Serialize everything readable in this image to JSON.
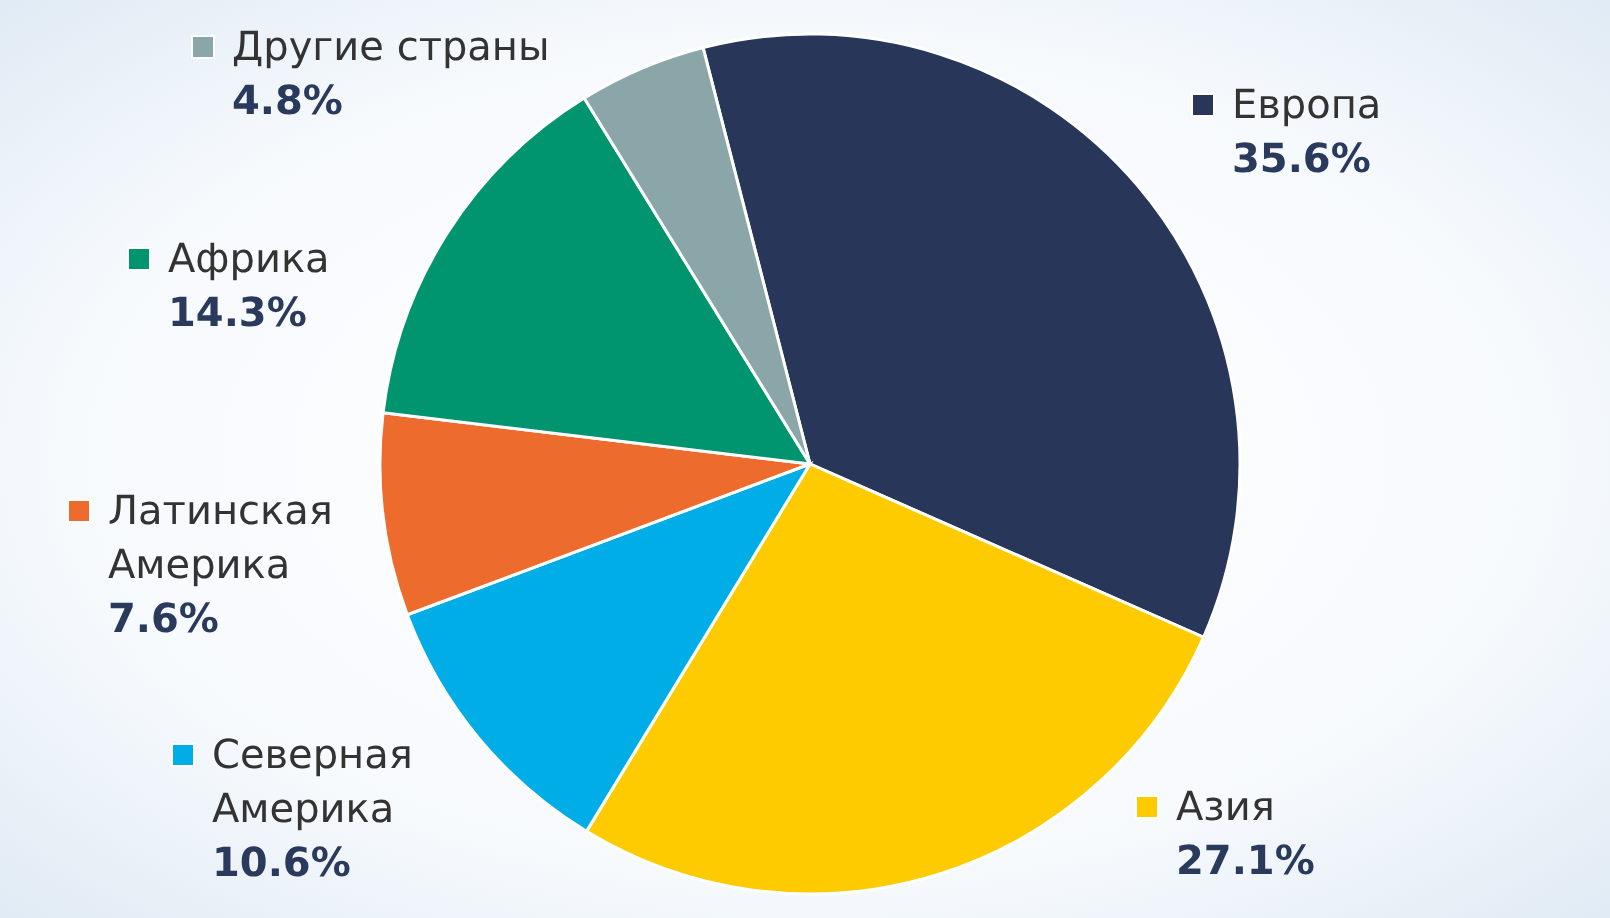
{
  "chart_data": {
    "type": "pie",
    "categories": [
      "Европа",
      "Азия",
      "Северная Америка",
      "Латинская Америка",
      "Африка",
      "Другие страны"
    ],
    "values": [
      35.6,
      27.1,
      10.6,
      7.6,
      14.3,
      4.8
    ],
    "value_labels": [
      "35.6%",
      "27.1%",
      "10.6%",
      "7.6%",
      "14.3%",
      "4.8%"
    ],
    "colors": [
      "#283659",
      "#fecb00",
      "#00ade6",
      "#ec6b2d",
      "#00956e",
      "#8ba6a8"
    ],
    "legend": "left"
  }
}
